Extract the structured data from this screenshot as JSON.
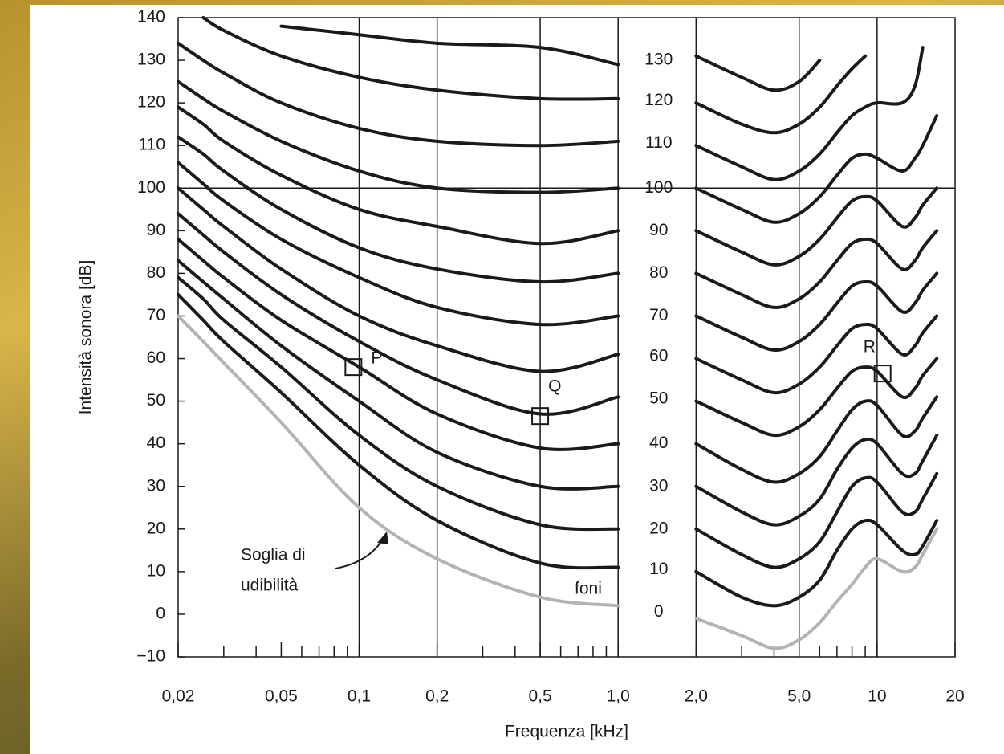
{
  "chart_data": {
    "type": "line",
    "xlabel": "Frequenza [kHz]",
    "ylabel": "Intensità sonora [dB]",
    "log_x": true,
    "xlim": [
      0.02,
      20
    ],
    "ylim": [
      -10,
      140
    ],
    "xticks": [
      {
        "value": 0.02,
        "label": "0,02"
      },
      {
        "value": 0.05,
        "label": "0,05"
      },
      {
        "value": 0.1,
        "label": "0,1"
      },
      {
        "value": 0.2,
        "label": "0,2"
      },
      {
        "value": 0.5,
        "label": "0,5"
      },
      {
        "value": 1,
        "label": "1,0"
      },
      {
        "value": 2,
        "label": "2,0"
      },
      {
        "value": 5,
        "label": "5,0"
      },
      10,
      20
    ],
    "xminorticks": [
      0.03,
      0.04,
      0.06,
      0.07,
      0.08,
      0.09,
      0.3,
      0.4,
      0.6,
      0.7,
      0.8,
      0.9,
      3,
      4,
      6,
      7,
      8,
      9
    ],
    "yticks": [
      {
        "value": -10,
        "label": "−10"
      },
      0,
      10,
      20,
      30,
      40,
      50,
      60,
      70,
      80,
      90,
      100,
      110,
      120,
      130,
      140
    ],
    "grid_x": [
      0.1,
      0.2,
      0.5,
      1,
      2,
      5,
      10
    ],
    "grid_y": [
      100
    ],
    "x": [
      0.02,
      0.025,
      0.03,
      0.05,
      0.1,
      0.2,
      0.5,
      1.0,
      1.5,
      2,
      3,
      4,
      5,
      6,
      7,
      8,
      9,
      10,
      12.5,
      14,
      15,
      17
    ],
    "series": [
      {
        "name": "0",
        "color": "#b3b3b3",
        "values": [
          70,
          64,
          59,
          45,
          25,
          13,
          4,
          2,
          null,
          -1,
          -5,
          -8,
          -6,
          -2,
          3,
          7,
          11,
          13,
          10,
          11,
          14,
          20
        ]
      },
      {
        "name": "10",
        "color": "#1a1a1a",
        "values": [
          75,
          69,
          64,
          52,
          35,
          22,
          12,
          11,
          null,
          10,
          4,
          2,
          4,
          8,
          15,
          20,
          22,
          21,
          15,
          14,
          16,
          22
        ]
      },
      {
        "name": "20",
        "color": "#1a1a1a",
        "values": [
          79,
          74,
          69,
          58,
          42,
          30,
          21,
          20,
          null,
          20,
          14,
          11,
          13,
          17,
          24,
          30,
          32,
          31,
          24,
          24,
          27,
          33
        ]
      },
      {
        "name": "30",
        "color": "#1a1a1a",
        "values": [
          83,
          78,
          74,
          63,
          50,
          38,
          30,
          30,
          null,
          30,
          24,
          21,
          23,
          27,
          34,
          39,
          41,
          40,
          33,
          33,
          36,
          42
        ]
      },
      {
        "name": "40",
        "color": "#1a1a1a",
        "values": [
          88,
          83,
          79,
          69,
          58,
          47,
          39,
          40,
          null,
          40,
          34,
          31,
          33,
          37,
          43,
          48,
          50,
          49,
          42,
          43,
          46,
          51
        ]
      },
      {
        "name": "50",
        "color": "#1a1a1a",
        "values": [
          94,
          89,
          85,
          75,
          64,
          55,
          47,
          51,
          null,
          50,
          45,
          42,
          44,
          48,
          53,
          57,
          58,
          57,
          51,
          53,
          56,
          60
        ]
      },
      {
        "name": "60",
        "color": "#1a1a1a",
        "values": [
          100,
          95,
          91,
          81,
          70,
          63,
          57,
          61,
          null,
          60,
          55,
          52,
          54,
          58,
          63,
          67,
          68,
          67,
          61,
          63,
          66,
          70
        ]
      },
      {
        "name": "70",
        "color": "#1a1a1a",
        "values": [
          106,
          101,
          97,
          88,
          79,
          72,
          68,
          70,
          null,
          70,
          65,
          62,
          64,
          68,
          73,
          77,
          78,
          77,
          71,
          73,
          76,
          80
        ]
      },
      {
        "name": "80",
        "color": "#1a1a1a",
        "values": [
          112,
          108,
          104,
          95,
          86,
          81,
          78,
          80,
          null,
          80,
          75,
          72,
          74,
          78,
          83,
          87,
          88,
          87,
          81,
          83,
          86,
          90
        ]
      },
      {
        "name": "90",
        "color": "#1a1a1a",
        "values": [
          119,
          115,
          111,
          103,
          95,
          91,
          87,
          90,
          null,
          90,
          85,
          82,
          84,
          88,
          93,
          97,
          98,
          97,
          91,
          93,
          96,
          100
        ]
      },
      {
        "name": "100",
        "color": "#1a1a1a",
        "values": [
          125,
          121,
          118,
          111,
          104,
          100,
          99,
          100,
          null,
          100,
          95,
          92,
          94,
          98,
          103,
          107,
          108,
          107,
          104,
          107,
          110,
          117
        ]
      },
      {
        "name": "110",
        "color": "#1a1a1a",
        "values": [
          134,
          130,
          127,
          120,
          114,
          111,
          110,
          111,
          null,
          110,
          105,
          102,
          104,
          108,
          113,
          117,
          119,
          120,
          120,
          124,
          133,
          null
        ]
      },
      {
        "name": "120",
        "color": "#1a1a1a",
        "values": [
          null,
          140,
          137,
          131,
          126,
          123,
          121,
          121,
          null,
          120,
          115,
          113,
          115,
          119,
          124,
          128,
          131,
          null,
          null,
          null,
          null,
          null
        ]
      },
      {
        "name": "130",
        "color": "#1a1a1a",
        "values": [
          null,
          null,
          null,
          138,
          136,
          134,
          133,
          129,
          null,
          131,
          126,
          123,
          125,
          130,
          null,
          null,
          null,
          null,
          null,
          null,
          null,
          null
        ]
      }
    ],
    "annotations": [
      {
        "text": "P",
        "x": 0.095,
        "y": 58
      },
      {
        "text": "Q",
        "x": 0.5,
        "y": 46.5
      },
      {
        "text": "R",
        "x": 10.5,
        "y": 56.5
      }
    ],
    "threshold_label": [
      "Soglia di",
      "udibilità"
    ],
    "unit_label": "foni"
  }
}
